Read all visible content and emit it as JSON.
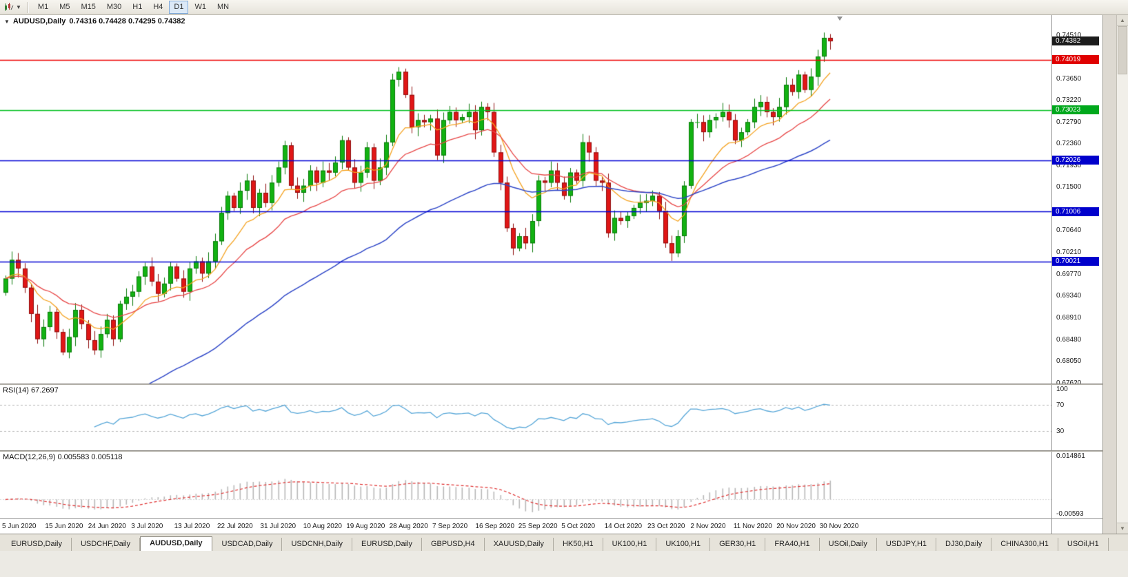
{
  "toolbar": {
    "timeframes": [
      "M1",
      "M5",
      "M15",
      "M30",
      "H1",
      "H4",
      "D1",
      "W1",
      "MN"
    ],
    "active_timeframe": "D1"
  },
  "chart": {
    "title": "AUDUSD,Daily",
    "ohlc_display": "0.74316 0.74428 0.74295 0.74382",
    "price_top": 0.749,
    "price_bottom": 0.676,
    "price_axis_labels": [
      "0.74510",
      "0.73650",
      "0.73220",
      "0.72790",
      "0.72360",
      "0.71930",
      "0.71500",
      "0.70640",
      "0.70210",
      "0.69770",
      "0.69340",
      "0.68910",
      "0.68480",
      "0.68050",
      "0.67620"
    ],
    "price_badges": [
      {
        "value": "0.74382",
        "price": 0.74382,
        "color": "#1c1c1c",
        "name": "current-price-badge"
      },
      {
        "value": "0.74019",
        "price": 0.74019,
        "color": "#e00000",
        "name": "resistance-line-badge"
      },
      {
        "value": "0.73023",
        "price": 0.73023,
        "color": "#00a81c",
        "name": "green-line-badge"
      },
      {
        "value": "0.72026",
        "price": 0.72026,
        "color": "#0000cc",
        "name": "blue-line-badge-1"
      },
      {
        "value": "0.71006",
        "price": 0.71006,
        "color": "#0000cc",
        "name": "blue-line-badge-2"
      },
      {
        "value": "0.70021",
        "price": 0.70021,
        "color": "#0000cc",
        "name": "blue-line-badge-3"
      }
    ],
    "hlines": [
      {
        "price": 0.74019,
        "color": "#ee0000"
      },
      {
        "price": 0.73023,
        "color": "#00c01e"
      },
      {
        "price": 0.72026,
        "color": "#0000d4"
      },
      {
        "price": 0.71006,
        "color": "#0000d4"
      },
      {
        "price": 0.70021,
        "color": "#0000d4"
      }
    ],
    "date_labels": [
      "5 Jun 2020",
      "15 Jun 2020",
      "24 Jun 2020",
      "3 Jul 2020",
      "13 Jul 2020",
      "22 Jul 2020",
      "31 Jul 2020",
      "10 Aug 2020",
      "19 Aug 2020",
      "28 Aug 2020",
      "7 Sep 2020",
      "16 Sep 2020",
      "25 Sep 2020",
      "5 Oct 2020",
      "14 Oct 2020",
      "23 Oct 2020",
      "2 Nov 2020",
      "11 Nov 2020",
      "20 Nov 2020",
      "30 Nov 2020"
    ]
  },
  "rsi": {
    "label": "RSI(14)",
    "value": "67.2697",
    "levels": [
      {
        "text": "100",
        "v": 100
      },
      {
        "text": "70",
        "v": 70
      },
      {
        "text": "30",
        "v": 30
      }
    ],
    "line_color": "#55a6d8"
  },
  "macd": {
    "label": "MACD(12,26,9)",
    "values": "0.005583 0.005118",
    "axis_top": "0.014861",
    "axis_bottom": "-0.00593",
    "axis_top_num": 0.014861,
    "axis_bottom_num": -0.00593,
    "histogram_color": "#b9b9b9",
    "signal_color": "#e03030"
  },
  "tabs": [
    "EURUSD,Daily",
    "USDCHF,Daily",
    "AUDUSD,Daily",
    "USDCAD,Daily",
    "USDCNH,Daily",
    "EURUSD,Daily",
    "GBPUSD,H4",
    "XAUUSD,Daily",
    "HK50,H1",
    "UK100,H1",
    "UK100,H1",
    "GER30,H1",
    "FRA40,H1",
    "USOil,Daily",
    "USDJPY,H1",
    "DJ30,Daily",
    "CHINA300,H1",
    "USOil,H1"
  ],
  "active_tab_index": 2,
  "chart_data": {
    "type": "candlestick",
    "symbol": "AUDUSD",
    "timeframe": "Daily",
    "first_open": 0.694,
    "up_color": "#12b212",
    "up_border": "#0a7a0a",
    "down_color": "#e01616",
    "down_border": "#8f0f0f",
    "ma_fast": {
      "period": 10,
      "color": "#f5a21e"
    },
    "ma_mid": {
      "period": 21,
      "color": "#e84545"
    },
    "ma_slow": {
      "period": 55,
      "color": "#2e46c8",
      "seed": 0.656
    },
    "closes": [
      0.6968,
      0.7005,
      0.6988,
      0.695,
      0.6898,
      0.6848,
      0.6872,
      0.6902,
      0.6862,
      0.6822,
      0.6852,
      0.6906,
      0.6878,
      0.6846,
      0.6826,
      0.6858,
      0.6886,
      0.6848,
      0.6918,
      0.6932,
      0.6942,
      0.6972,
      0.6992,
      0.6962,
      0.6938,
      0.6958,
      0.6992,
      0.6968,
      0.6942,
      0.6988,
      0.7002,
      0.6978,
      0.7002,
      0.7042,
      0.7098,
      0.7132,
      0.7108,
      0.7142,
      0.7162,
      0.7108,
      0.7138,
      0.7118,
      0.7158,
      0.7188,
      0.7232,
      0.7152,
      0.7138,
      0.7152,
      0.7182,
      0.7158,
      0.7182,
      0.7178,
      0.7198,
      0.7242,
      0.7188,
      0.7158,
      0.7178,
      0.7228,
      0.7162,
      0.7188,
      0.7238,
      0.7362,
      0.7378,
      0.7332,
      0.7268,
      0.7282,
      0.7278,
      0.7285,
      0.7212,
      0.7282,
      0.7298,
      0.7282,
      0.7288,
      0.7298,
      0.7262,
      0.7308,
      0.7298,
      0.7218,
      0.7158,
      0.7068,
      0.7028,
      0.7052,
      0.7038,
      0.7082,
      0.7162,
      0.7158,
      0.7182,
      0.7158,
      0.7132,
      0.7178,
      0.7162,
      0.7238,
      0.7218,
      0.7162,
      0.7158,
      0.7058,
      0.7088,
      0.7082,
      0.7092,
      0.7108,
      0.7118,
      0.7122,
      0.7132,
      0.7102,
      0.7038,
      0.7018,
      0.7052,
      0.7152,
      0.7278,
      0.7278,
      0.7258,
      0.7282,
      0.7288,
      0.7298,
      0.7282,
      0.7242,
      0.7258,
      0.7278,
      0.7308,
      0.7318,
      0.7298,
      0.7288,
      0.7308,
      0.7352,
      0.7338,
      0.7372,
      0.7342,
      0.7368,
      0.7408,
      0.7445,
      0.74382
    ]
  }
}
